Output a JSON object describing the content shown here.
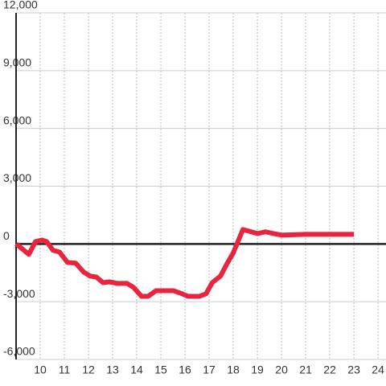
{
  "chart_data": {
    "type": "line",
    "x": [
      9.0,
      9.53,
      9.8,
      10.07,
      10.27,
      10.53,
      10.8,
      11.13,
      11.47,
      11.8,
      12.07,
      12.33,
      12.6,
      12.87,
      13.2,
      13.6,
      13.87,
      14.2,
      14.47,
      14.8,
      15.13,
      15.53,
      15.8,
      16.13,
      16.6,
      16.87,
      17.13,
      17.47,
      17.73,
      18.0,
      18.4,
      19.0,
      19.33,
      19.67,
      20.0,
      21.0,
      22.0,
      23.0
    ],
    "series": [
      {
        "color": "#e8253f",
        "values": [
          0,
          -540,
          120,
          200,
          120,
          -330,
          -420,
          -960,
          -1000,
          -1460,
          -1670,
          -1720,
          -2010,
          -1970,
          -2050,
          -2050,
          -2260,
          -2720,
          -2720,
          -2430,
          -2430,
          -2430,
          -2550,
          -2720,
          -2720,
          -2590,
          -2010,
          -1670,
          -1050,
          -460,
          750,
          540,
          630,
          540,
          460,
          500,
          500,
          500
        ]
      }
    ],
    "xlim": [
      9,
      24.33
    ],
    "xticks": [
      10,
      11,
      12,
      13,
      14,
      15,
      16,
      17,
      18,
      19,
      20,
      21,
      22,
      23,
      24
    ],
    "ylim": [
      -6000,
      12000
    ],
    "yticks": [
      {
        "value": -6000,
        "label": "-6,000"
      },
      {
        "value": -3000,
        "label": "-3,000"
      },
      0,
      {
        "value": 3000,
        "label": "3,000"
      },
      {
        "value": 6000,
        "label": "6,000"
      },
      {
        "value": 9000,
        "label": "9,000"
      },
      {
        "value": 12000,
        "label": "12,000"
      }
    ],
    "grid": true
  }
}
